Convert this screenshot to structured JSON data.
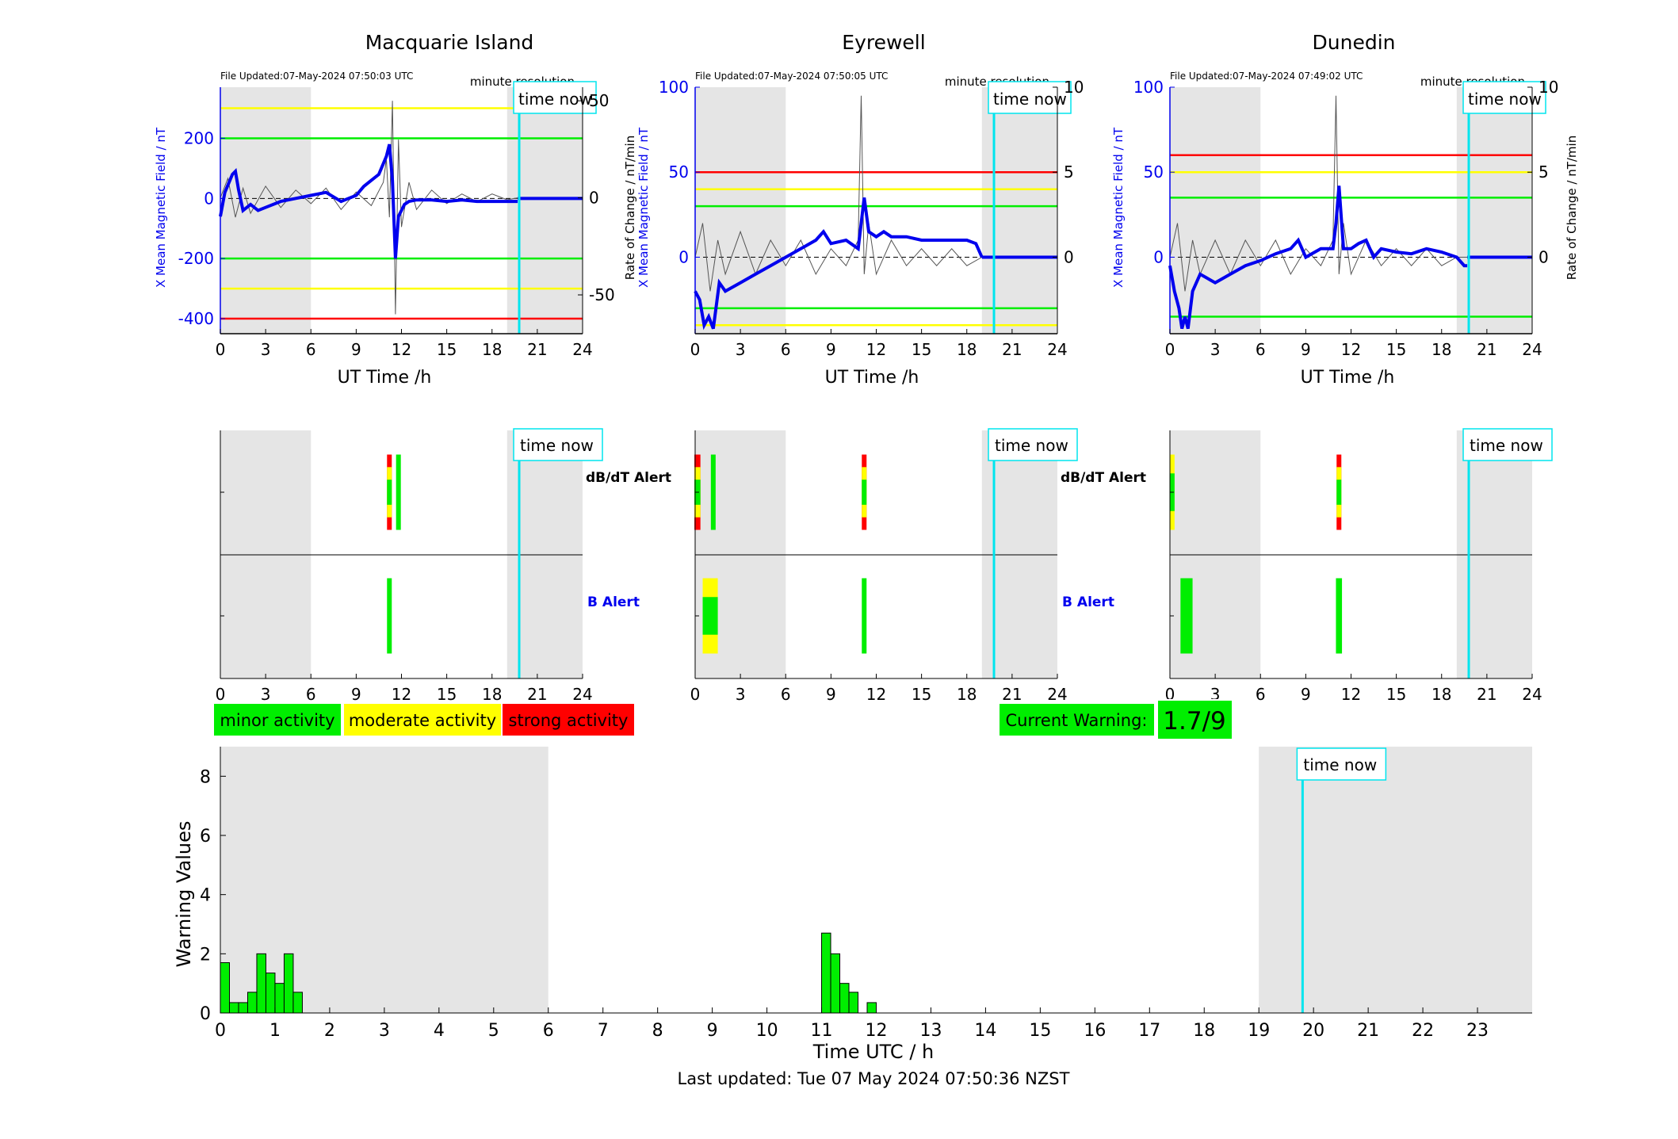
{
  "colors": {
    "minor": "#00ee00",
    "moderate": "#ffff00",
    "strong": "#ff0000",
    "mean_line": "#0000ee",
    "time_now": "#00e5ee",
    "night_shade": "#e5e5e5",
    "raw_trace": "#555555"
  },
  "legend": {
    "minor": "minor activity",
    "moderate": "moderate activity",
    "strong": "strong activity"
  },
  "current_warning": {
    "label": "Current Warning:",
    "value": "1.7/9"
  },
  "footer": {
    "last_updated": "Last updated: Tue 07 May 2024 07:50:36 NZST"
  },
  "alerts": {
    "dbdt_label": "dB/dT Alert",
    "b_label": "B Alert"
  },
  "time_now_label": "time now",
  "resolution_label": "minute resolution",
  "stations": [
    {
      "name": "Macquarie Island",
      "file_updated": "File Updated:07-May-2024 07:50:03 UTC",
      "ylabel_left": "X Mean Magnetic Field / nT",
      "ylabel_right": "",
      "xlabel": "UT Time /h",
      "left_ylim": [
        -450,
        370
      ],
      "left_ticks": [
        -400,
        -200,
        0,
        200
      ],
      "right_ylim": [
        -70,
        57
      ],
      "right_ticks": [
        -50,
        0,
        50
      ],
      "thresholds": [
        {
          "level": "moderate",
          "value": 300
        },
        {
          "level": "minor",
          "value": 200
        },
        {
          "level": "minor",
          "value": -200
        },
        {
          "level": "moderate",
          "value": -300
        },
        {
          "level": "strong",
          "value": -400
        }
      ],
      "mean_trace": [
        [
          0,
          -60
        ],
        [
          0.3,
          20
        ],
        [
          0.8,
          80
        ],
        [
          1.0,
          90
        ],
        [
          1.2,
          30
        ],
        [
          1.5,
          -40
        ],
        [
          2,
          -20
        ],
        [
          2.5,
          -40
        ],
        [
          3,
          -30
        ],
        [
          4,
          -10
        ],
        [
          5,
          0
        ],
        [
          6,
          10
        ],
        [
          7,
          20
        ],
        [
          8,
          -10
        ],
        [
          9,
          10
        ],
        [
          9.5,
          40
        ],
        [
          10,
          60
        ],
        [
          10.5,
          80
        ],
        [
          11,
          140
        ],
        [
          11.2,
          180
        ],
        [
          11.4,
          60
        ],
        [
          11.6,
          -200
        ],
        [
          11.8,
          -60
        ],
        [
          12,
          -40
        ],
        [
          12.2,
          -20
        ],
        [
          12.5,
          -10
        ],
        [
          13,
          -5
        ],
        [
          14,
          -5
        ],
        [
          15,
          -10
        ],
        [
          16,
          -5
        ],
        [
          17,
          -10
        ],
        [
          18,
          -10
        ],
        [
          19,
          -10
        ],
        [
          19.7,
          -10
        ]
      ],
      "raw_trace": [
        [
          0,
          0
        ],
        [
          0.5,
          10
        ],
        [
          1,
          -10
        ],
        [
          1.5,
          5
        ],
        [
          2,
          -8
        ],
        [
          3,
          6
        ],
        [
          4,
          -5
        ],
        [
          5,
          4
        ],
        [
          6,
          -3
        ],
        [
          7,
          5
        ],
        [
          8,
          -6
        ],
        [
          9,
          3
        ],
        [
          10,
          -4
        ],
        [
          10.8,
          8
        ],
        [
          11.0,
          20
        ],
        [
          11.2,
          -10
        ],
        [
          11.4,
          50
        ],
        [
          11.6,
          -60
        ],
        [
          11.8,
          30
        ],
        [
          12,
          -15
        ],
        [
          12.5,
          8
        ],
        [
          13,
          -6
        ],
        [
          14,
          4
        ],
        [
          15,
          -3
        ],
        [
          16,
          2
        ],
        [
          17,
          -2
        ],
        [
          18,
          2
        ],
        [
          19,
          -1
        ],
        [
          19.7,
          0
        ]
      ],
      "dbdt_alerts": [
        {
          "time": 11.2,
          "width": 0.3,
          "levels": [
            "strong",
            "moderate",
            "minor"
          ]
        },
        {
          "time": 11.8,
          "width": 0.3,
          "levels": [
            "minor"
          ]
        }
      ],
      "b_alerts": [
        {
          "time": 11.2,
          "width": 0.3,
          "levels": [
            "minor"
          ]
        }
      ]
    },
    {
      "name": "Eyrewell",
      "file_updated": "File Updated:07-May-2024 07:50:05 UTC",
      "ylabel_left": "X Mean Magnetic Field / nT",
      "ylabel_right": "Rate of Change / nT/min",
      "xlabel": "UT Time /h",
      "left_ylim": [
        -45,
        100
      ],
      "left_ticks": [
        0,
        50,
        100
      ],
      "right_ylim": [
        -4.5,
        10
      ],
      "right_ticks": [
        0,
        5,
        10
      ],
      "thresholds": [
        {
          "level": "strong",
          "value": 50
        },
        {
          "level": "moderate",
          "value": 40
        },
        {
          "level": "minor",
          "value": 30
        },
        {
          "level": "minor",
          "value": -30
        },
        {
          "level": "moderate",
          "value": -40
        }
      ],
      "mean_trace": [
        [
          0,
          -20
        ],
        [
          0.3,
          -25
        ],
        [
          0.6,
          -40
        ],
        [
          0.9,
          -35
        ],
        [
          1.2,
          -42
        ],
        [
          1.6,
          -15
        ],
        [
          2,
          -20
        ],
        [
          3,
          -15
        ],
        [
          4,
          -10
        ],
        [
          5,
          -5
        ],
        [
          6,
          0
        ],
        [
          7,
          5
        ],
        [
          8,
          10
        ],
        [
          8.5,
          15
        ],
        [
          9,
          8
        ],
        [
          10,
          10
        ],
        [
          10.8,
          5
        ],
        [
          11,
          20
        ],
        [
          11.2,
          35
        ],
        [
          11.5,
          15
        ],
        [
          12,
          12
        ],
        [
          12.5,
          15
        ],
        [
          13,
          12
        ],
        [
          14,
          12
        ],
        [
          15,
          10
        ],
        [
          16,
          10
        ],
        [
          17,
          10
        ],
        [
          18,
          10
        ],
        [
          18.6,
          8
        ],
        [
          19,
          0
        ]
      ],
      "raw_trace": [
        [
          0,
          0
        ],
        [
          0.5,
          2
        ],
        [
          1,
          -2
        ],
        [
          1.5,
          1
        ],
        [
          2,
          -1
        ],
        [
          3,
          1.5
        ],
        [
          4,
          -1
        ],
        [
          5,
          1
        ],
        [
          6,
          -0.5
        ],
        [
          7,
          1
        ],
        [
          8,
          -1
        ],
        [
          9,
          0.5
        ],
        [
          10,
          -0.5
        ],
        [
          10.8,
          1
        ],
        [
          11,
          9.5
        ],
        [
          11.2,
          -1
        ],
        [
          11.5,
          2
        ],
        [
          12,
          -1
        ],
        [
          13,
          1
        ],
        [
          14,
          -0.5
        ],
        [
          15,
          0.5
        ],
        [
          16,
          -0.5
        ],
        [
          17,
          0.5
        ],
        [
          18,
          -0.5
        ],
        [
          19,
          0
        ]
      ],
      "dbdt_alerts": [
        {
          "time": 0.15,
          "width": 0.4,
          "levels": [
            "strong",
            "moderate",
            "minor"
          ]
        },
        {
          "time": 1.2,
          "width": 0.2,
          "levels": [
            "minor"
          ]
        },
        {
          "time": 11.2,
          "width": 0.3,
          "levels": [
            "strong",
            "moderate",
            "minor"
          ]
        }
      ],
      "b_alerts": [
        {
          "time": 1.0,
          "width": 1.0,
          "levels": [
            "moderate",
            "minor"
          ]
        },
        {
          "time": 11.2,
          "width": 0.3,
          "levels": [
            "minor"
          ]
        }
      ]
    },
    {
      "name": "Dunedin",
      "file_updated": "File Updated:07-May-2024 07:49:02 UTC",
      "ylabel_left": "X Mean Magnetic Field / nT",
      "ylabel_right": "Rate of Change / nT/min",
      "xlabel": "UT Time /h",
      "left_ylim": [
        -45,
        100
      ],
      "left_ticks": [
        0,
        50,
        100
      ],
      "right_ylim": [
        -4.5,
        10
      ],
      "right_ticks": [
        0,
        5,
        10
      ],
      "thresholds": [
        {
          "level": "strong",
          "value": 60
        },
        {
          "level": "moderate",
          "value": 50
        },
        {
          "level": "minor",
          "value": 35
        },
        {
          "level": "minor",
          "value": -35
        }
      ],
      "mean_trace": [
        [
          0,
          -5
        ],
        [
          0.3,
          -20
        ],
        [
          0.6,
          -30
        ],
        [
          0.8,
          -42
        ],
        [
          1.0,
          -35
        ],
        [
          1.2,
          -42
        ],
        [
          1.5,
          -20
        ],
        [
          2,
          -10
        ],
        [
          3,
          -15
        ],
        [
          4,
          -10
        ],
        [
          5,
          -5
        ],
        [
          6,
          -2
        ],
        [
          7,
          2
        ],
        [
          8,
          5
        ],
        [
          8.5,
          10
        ],
        [
          9,
          0
        ],
        [
          10,
          5
        ],
        [
          10.8,
          5
        ],
        [
          11,
          20
        ],
        [
          11.2,
          42
        ],
        [
          11.5,
          5
        ],
        [
          12,
          5
        ],
        [
          12.5,
          8
        ],
        [
          13,
          10
        ],
        [
          13.5,
          0
        ],
        [
          14,
          5
        ],
        [
          15,
          3
        ],
        [
          16,
          2
        ],
        [
          17,
          5
        ],
        [
          18,
          3
        ],
        [
          19,
          0
        ],
        [
          19.5,
          -5
        ],
        [
          19.7,
          -5
        ]
      ],
      "raw_trace": [
        [
          0,
          0
        ],
        [
          0.5,
          2
        ],
        [
          1,
          -2
        ],
        [
          1.5,
          1
        ],
        [
          2,
          -1
        ],
        [
          3,
          1
        ],
        [
          4,
          -1
        ],
        [
          5,
          1
        ],
        [
          6,
          -0.5
        ],
        [
          7,
          1
        ],
        [
          8,
          -1
        ],
        [
          9,
          0.5
        ],
        [
          10,
          -0.5
        ],
        [
          10.8,
          1
        ],
        [
          11,
          9.5
        ],
        [
          11.2,
          -1
        ],
        [
          11.5,
          2
        ],
        [
          12,
          -1
        ],
        [
          13,
          1
        ],
        [
          14,
          -0.5
        ],
        [
          15,
          0.5
        ],
        [
          16,
          -0.5
        ],
        [
          17,
          0.5
        ],
        [
          18,
          -0.5
        ],
        [
          19,
          0
        ],
        [
          19.7,
          0
        ]
      ],
      "dbdt_alerts": [
        {
          "time": 0.15,
          "width": 0.3,
          "levels": [
            "moderate",
            "minor"
          ]
        },
        {
          "time": 11.2,
          "width": 0.3,
          "levels": [
            "strong",
            "moderate",
            "minor"
          ]
        }
      ],
      "b_alerts": [
        {
          "time": 1.1,
          "width": 0.8,
          "levels": [
            "minor"
          ]
        },
        {
          "time": 11.2,
          "width": 0.4,
          "levels": [
            "minor"
          ]
        }
      ]
    }
  ],
  "chart_data": {
    "type": "bar",
    "title": "",
    "xlabel": "Time UTC / h",
    "ylabel": "Warning Values",
    "xlim": [
      0,
      24
    ],
    "ylim": [
      0,
      9
    ],
    "xticks": [
      0,
      1,
      2,
      3,
      4,
      5,
      6,
      7,
      8,
      9,
      10,
      11,
      12,
      13,
      14,
      15,
      16,
      17,
      18,
      19,
      20,
      21,
      22,
      23
    ],
    "yticks": [
      0,
      2,
      4,
      6,
      8
    ],
    "night_shading": [
      [
        0,
        6
      ],
      [
        19,
        24
      ]
    ],
    "time_now": 19.8,
    "bar_width": 0.16667,
    "x": [
      0.0833,
      0.25,
      0.4167,
      0.5833,
      0.75,
      0.9167,
      1.0833,
      1.25,
      1.4167,
      11.0833,
      11.25,
      11.4167,
      11.5833,
      11.9167
    ],
    "values": [
      1.7,
      0.35,
      0.35,
      0.7,
      2.0,
      1.35,
      1.0,
      2.0,
      0.7,
      2.7,
      2.0,
      1.0,
      0.7,
      0.35
    ]
  }
}
